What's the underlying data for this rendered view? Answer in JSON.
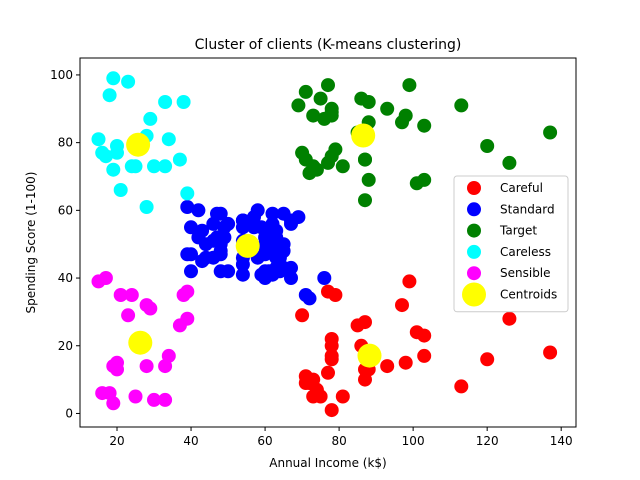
{
  "chart_data": {
    "type": "scatter",
    "title": "Cluster of clients (K-means clustering)",
    "xlabel": "Annual Income (k$)",
    "ylabel": "Spending Score (1-100)",
    "xlim": [
      10,
      144
    ],
    "ylim": [
      -4,
      105
    ],
    "xticks": [
      20,
      40,
      60,
      80,
      100,
      120,
      140
    ],
    "yticks": [
      0,
      20,
      40,
      60,
      80,
      100
    ],
    "grid": false,
    "legend_position": "center-right",
    "series": [
      {
        "name": "Careful",
        "color": "#ff0000",
        "points": [
          [
            70,
            29
          ],
          [
            71,
            11
          ],
          [
            71,
            9
          ],
          [
            72,
            9
          ],
          [
            73,
            5
          ],
          [
            73,
            10
          ],
          [
            74,
            7
          ],
          [
            75,
            5
          ],
          [
            77,
            12
          ],
          [
            77,
            36
          ],
          [
            78,
            22
          ],
          [
            78,
            17
          ],
          [
            78,
            20
          ],
          [
            78,
            16
          ],
          [
            78,
            1
          ],
          [
            79,
            35
          ],
          [
            81,
            5
          ],
          [
            85,
            26
          ],
          [
            86,
            20
          ],
          [
            87,
            27
          ],
          [
            87,
            13
          ],
          [
            87,
            10
          ],
          [
            88,
            13
          ],
          [
            88,
            15
          ],
          [
            93,
            14
          ],
          [
            97,
            32
          ],
          [
            98,
            15
          ],
          [
            99,
            39
          ],
          [
            101,
            24
          ],
          [
            103,
            17
          ],
          [
            103,
            23
          ],
          [
            113,
            8
          ],
          [
            120,
            16
          ],
          [
            126,
            28
          ],
          [
            137,
            18
          ]
        ]
      },
      {
        "name": "Standard",
        "color": "#0000ff",
        "points": [
          [
            39,
            61
          ],
          [
            39,
            47
          ],
          [
            40,
            55
          ],
          [
            40,
            42
          ],
          [
            40,
            47
          ],
          [
            42,
            52
          ],
          [
            42,
            60
          ],
          [
            43,
            54
          ],
          [
            43,
            45
          ],
          [
            44,
            50
          ],
          [
            44,
            46
          ],
          [
            46,
            51
          ],
          [
            46,
            46
          ],
          [
            46,
            56
          ],
          [
            47,
            52
          ],
          [
            47,
            59
          ],
          [
            48,
            51
          ],
          [
            48,
            59
          ],
          [
            48,
            50
          ],
          [
            48,
            48
          ],
          [
            48,
            47
          ],
          [
            48,
            42
          ],
          [
            49,
            52
          ],
          [
            49,
            55
          ],
          [
            50,
            56
          ],
          [
            50,
            42
          ],
          [
            54,
            57
          ],
          [
            54,
            51
          ],
          [
            54,
            55
          ],
          [
            54,
            41
          ],
          [
            54,
            44
          ],
          [
            54,
            57
          ],
          [
            54,
            46
          ],
          [
            57,
            58
          ],
          [
            57,
            55
          ],
          [
            58,
            60
          ],
          [
            58,
            46
          ],
          [
            59,
            55
          ],
          [
            59,
            41
          ],
          [
            60,
            49
          ],
          [
            60,
            40
          ],
          [
            60,
            42
          ],
          [
            60,
            52
          ],
          [
            60,
            47
          ],
          [
            60,
            50
          ],
          [
            61,
            42
          ],
          [
            61,
            49
          ],
          [
            62,
            41
          ],
          [
            62,
            48
          ],
          [
            62,
            59
          ],
          [
            62,
            55
          ],
          [
            62,
            56
          ],
          [
            62,
            42
          ],
          [
            63,
            50
          ],
          [
            63,
            46
          ],
          [
            63,
            43
          ],
          [
            63,
            48
          ],
          [
            63,
            52
          ],
          [
            63,
            54
          ],
          [
            64,
            42
          ],
          [
            64,
            46
          ],
          [
            65,
            48
          ],
          [
            65,
            50
          ],
          [
            65,
            43
          ],
          [
            65,
            59
          ],
          [
            67,
            43
          ],
          [
            67,
            57
          ],
          [
            67,
            56
          ],
          [
            67,
            40
          ],
          [
            69,
            58
          ],
          [
            71,
            35
          ],
          [
            72,
            34
          ],
          [
            76,
            40
          ]
        ]
      },
      {
        "name": "Target",
        "color": "#008000",
        "points": [
          [
            69,
            91
          ],
          [
            70,
            77
          ],
          [
            71,
            95
          ],
          [
            71,
            75
          ],
          [
            72,
            71
          ],
          [
            73,
            88
          ],
          [
            73,
            73
          ],
          [
            74,
            72
          ],
          [
            75,
            93
          ],
          [
            76,
            87
          ],
          [
            77,
            97
          ],
          [
            77,
            74
          ],
          [
            78,
            90
          ],
          [
            78,
            88
          ],
          [
            78,
            76
          ],
          [
            78,
            89
          ],
          [
            79,
            78
          ],
          [
            81,
            73
          ],
          [
            85,
            83
          ],
          [
            86,
            93
          ],
          [
            87,
            75
          ],
          [
            87,
            63
          ],
          [
            87,
            75
          ],
          [
            88,
            92
          ],
          [
            88,
            86
          ],
          [
            88,
            69
          ],
          [
            93,
            90
          ],
          [
            97,
            86
          ],
          [
            98,
            88
          ],
          [
            99,
            97
          ],
          [
            101,
            68
          ],
          [
            103,
            85
          ],
          [
            103,
            69
          ],
          [
            113,
            91
          ],
          [
            120,
            79
          ],
          [
            126,
            74
          ],
          [
            137,
            83
          ]
        ]
      },
      {
        "name": "Careless",
        "color": "#00ffff",
        "points": [
          [
            15,
            81
          ],
          [
            16,
            77
          ],
          [
            17,
            76
          ],
          [
            18,
            94
          ],
          [
            19,
            72
          ],
          [
            19,
            99
          ],
          [
            20,
            77
          ],
          [
            20,
            79
          ],
          [
            21,
            66
          ],
          [
            23,
            98
          ],
          [
            24,
            73
          ],
          [
            25,
            73
          ],
          [
            28,
            82
          ],
          [
            28,
            61
          ],
          [
            29,
            87
          ],
          [
            30,
            73
          ],
          [
            33,
            73
          ],
          [
            33,
            92
          ],
          [
            34,
            81
          ],
          [
            37,
            75
          ],
          [
            38,
            92
          ],
          [
            39,
            65
          ]
        ]
      },
      {
        "name": "Sensible",
        "color": "#ff00ff",
        "points": [
          [
            15,
            39
          ],
          [
            16,
            6
          ],
          [
            17,
            40
          ],
          [
            18,
            6
          ],
          [
            19,
            3
          ],
          [
            19,
            14
          ],
          [
            20,
            15
          ],
          [
            20,
            13
          ],
          [
            21,
            35
          ],
          [
            23,
            29
          ],
          [
            24,
            35
          ],
          [
            25,
            5
          ],
          [
            28,
            14
          ],
          [
            28,
            32
          ],
          [
            29,
            31
          ],
          [
            30,
            4
          ],
          [
            33,
            4
          ],
          [
            33,
            14
          ],
          [
            34,
            17
          ],
          [
            37,
            26
          ],
          [
            38,
            35
          ],
          [
            39,
            36
          ],
          [
            39,
            28
          ]
        ]
      },
      {
        "name": "Centroids",
        "color": "#ffff00",
        "points": [
          [
            86.5,
            82.1
          ],
          [
            88.2,
            17.1
          ],
          [
            55.3,
            49.5
          ],
          [
            25.7,
            79.4
          ],
          [
            26.3,
            20.9
          ]
        ]
      }
    ]
  }
}
